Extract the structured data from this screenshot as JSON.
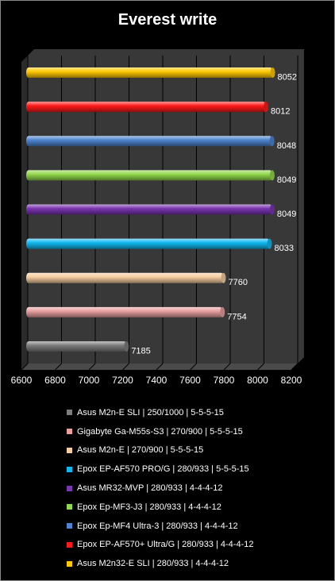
{
  "chart_data": {
    "type": "bar",
    "orientation": "horizontal",
    "title": "Everest write",
    "xlim": [
      6600,
      8200
    ],
    "x_ticks": [
      6600,
      6800,
      7000,
      7200,
      7400,
      7600,
      7800,
      8000,
      8200
    ],
    "grid": true,
    "legend_position": "bottom",
    "series": [
      {
        "name": "Asus M2n-E SLI  | 250/1000  |  5-5-5-15",
        "value": 7185,
        "color": "#7d7d7d"
      },
      {
        "name": "Gigabyte Ga-M55s-S3  |  270/900  |  5-5-5-15",
        "value": 7754,
        "color": "#e8a0a0"
      },
      {
        "name": "Asus M2n-E  |  270/900  |  5-5-5-15",
        "value": 7760,
        "color": "#f6cda0"
      },
      {
        "name": "Epox EP-AF570 PRO/G  |  280/933  |  5-5-5-15",
        "value": 8033,
        "color": "#11b8f0"
      },
      {
        "name": "Asus MR32-MVP  |  280/933  |  4-4-4-12",
        "value": 8049,
        "color": "#7a35b0"
      },
      {
        "name": "Epox Ep-MF3-J3  |  280/933  |  4-4-4-12",
        "value": 8049,
        "color": "#92d84c"
      },
      {
        "name": "Epox Ep-MF4 Ultra-3  |  280/933  |  4-4-4-12",
        "value": 8048,
        "color": "#4f84d0"
      },
      {
        "name": "Epox EP-AF570+ Ultra/G  |  280/933  |  4-4-4-12",
        "value": 8012,
        "color": "#ff1a1a"
      },
      {
        "name": "Asus M2n32-E SLI  |  280/933  |  4-4-4-12",
        "value": 8052,
        "color": "#ffc800"
      }
    ]
  }
}
